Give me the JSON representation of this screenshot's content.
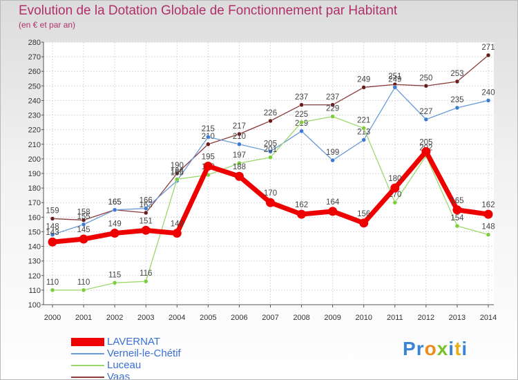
{
  "title": "Evolution de la Dotation Globale de Fonctionnement par Habitant",
  "subtitle": "(en € et par an)",
  "logo": {
    "text": "Proxiti",
    "letters": [
      "P",
      "r",
      "o",
      "x",
      "i",
      "t",
      "i"
    ]
  },
  "chart_data": {
    "type": "line",
    "title": "Evolution de la Dotation Globale de Fonctionnement par Habitant",
    "subtitle": "(en € et par an)",
    "xlabel": "",
    "ylabel": "",
    "x": [
      2000,
      2001,
      2002,
      2003,
      2004,
      2005,
      2006,
      2007,
      2008,
      2009,
      2010,
      2011,
      2012,
      2013,
      2014
    ],
    "ylim": [
      100,
      280
    ],
    "yticks": [
      100,
      110,
      120,
      130,
      140,
      150,
      160,
      170,
      180,
      190,
      200,
      210,
      220,
      230,
      240,
      250,
      260,
      270,
      280
    ],
    "grid": true,
    "legend_position": "bottom-left",
    "series": [
      {
        "name": "LAVERNAT",
        "color": "#ee0000",
        "marker_color": "#ee0000",
        "thick": true,
        "values": [
          143,
          145,
          149,
          151,
          149,
          195,
          188,
          170,
          162,
          164,
          156,
          180,
          205,
          165,
          162
        ],
        "labels": [
          "143",
          "145",
          "149",
          "151",
          "149",
          "195",
          "188",
          "170",
          "162",
          "164",
          "156",
          "180",
          "205",
          "165",
          "162"
        ]
      },
      {
        "name": "Verneil-le-Chétif",
        "color": "#6a9ad8",
        "marker_color": "#3a7ad0",
        "thick": false,
        "values": [
          148,
          155,
          165,
          166,
          185,
          215,
          210,
          205,
          219,
          199,
          213,
          249,
          227,
          235,
          240
        ],
        "labels": [
          "148",
          "155",
          "165",
          "166",
          "185",
          "215",
          "210",
          "205",
          "219",
          "199",
          "213",
          "249",
          "227",
          "235",
          "240"
        ]
      },
      {
        "name": "Luceau",
        "color": "#9ad86a",
        "marker_color": "#7ccc3c",
        "thick": false,
        "values": [
          110,
          110,
          115,
          116,
          186,
          189,
          197,
          201,
          225,
          229,
          221,
          170,
          202,
          154,
          148
        ],
        "labels": [
          "110",
          "110",
          "115",
          "116",
          "186",
          "189",
          "197",
          "201",
          "225",
          "229",
          "221",
          "170",
          "202",
          "154",
          "148"
        ]
      },
      {
        "name": "Vaas",
        "color": "#8a3b3b",
        "marker_color": "#6a1c1c",
        "thick": false,
        "values": [
          159,
          158,
          165,
          163,
          190,
          210,
          217,
          226,
          237,
          237,
          249,
          251,
          250,
          253,
          271
        ],
        "labels": [
          "159",
          "158",
          "165",
          "163",
          "190",
          "210",
          "217",
          "226",
          "237",
          "237",
          "249",
          "251",
          "250",
          "253",
          "271"
        ]
      }
    ]
  }
}
